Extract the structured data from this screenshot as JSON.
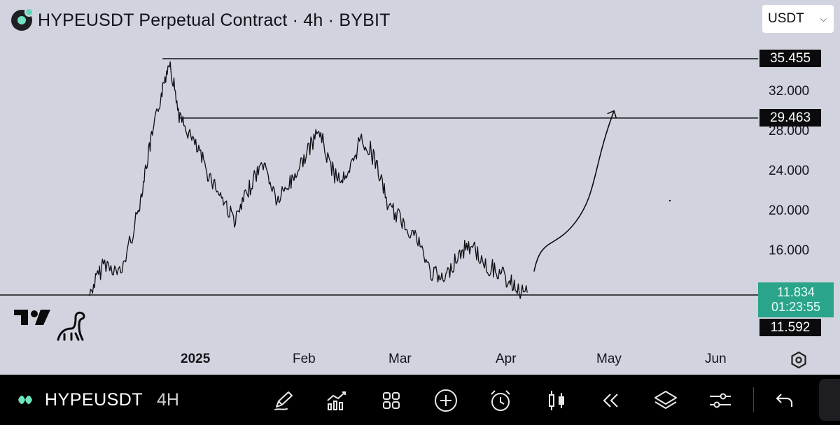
{
  "header": {
    "title": "HYPEUSDT Perpetual Contract · 4h · BYBIT",
    "currency": "USDT",
    "logo_icon": "hype-coin-icon"
  },
  "price_scale": {
    "ticks": [
      "32.000",
      "28.000",
      "24.000",
      "20.000",
      "16.000"
    ],
    "tags": {
      "high": "35.455",
      "resistance": "29.463",
      "current_price": "11.834",
      "countdown": "01:23:55",
      "support": "11.592"
    }
  },
  "time_scale": {
    "ticks": [
      "2025",
      "Feb",
      "Mar",
      "Apr",
      "May",
      "Jun"
    ]
  },
  "chart_data": {
    "type": "line",
    "symbol": "HYPEUSDT",
    "interval": "4h",
    "exchange": "BYBIT",
    "x": [
      "2024-12-01",
      "2024-12-05",
      "2024-12-10",
      "2024-12-15",
      "2024-12-18",
      "2024-12-21",
      "2024-12-24",
      "2024-12-27",
      "2024-12-31",
      "2025-01-04",
      "2025-01-08",
      "2025-01-12",
      "2025-01-16",
      "2025-01-20",
      "2025-01-24",
      "2025-01-28",
      "2025-02-01",
      "2025-02-05",
      "2025-02-09",
      "2025-02-13",
      "2025-02-17",
      "2025-02-21",
      "2025-02-25",
      "2025-03-01",
      "2025-03-05",
      "2025-03-09",
      "2025-03-13",
      "2025-03-17",
      "2025-03-21",
      "2025-03-25",
      "2025-03-29",
      "2025-04-02",
      "2025-04-06"
    ],
    "y": [
      11.6,
      14.8,
      13.7,
      20.0,
      26.0,
      30.8,
      35.4,
      29.4,
      27.0,
      24.0,
      21.5,
      19.0,
      22.5,
      25.0,
      21.0,
      23.0,
      25.5,
      28.2,
      24.0,
      23.0,
      27.5,
      25.5,
      20.5,
      19.0,
      17.5,
      14.0,
      13.0,
      15.5,
      16.7,
      14.5,
      13.8,
      12.5,
      11.83
    ],
    "horizontal_levels": [
      35.455,
      29.463,
      11.592
    ],
    "projection_arrow": {
      "x": [
        "2025-04-08",
        "2025-04-20",
        "2025-05-01"
      ],
      "y": [
        14.0,
        19.0,
        30.2
      ]
    },
    "ylim": [
      11.592,
      35.455
    ],
    "grid": false
  }
}
